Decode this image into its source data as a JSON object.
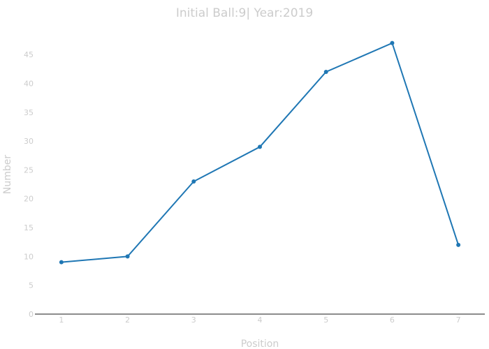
{
  "chart_data": {
    "type": "line",
    "title": "Initial Ball:9| Year:2019",
    "xlabel": "Position",
    "ylabel": "Number",
    "x": [
      1,
      2,
      3,
      4,
      5,
      6,
      7
    ],
    "y": [
      9,
      10,
      23,
      29,
      42,
      47,
      12
    ],
    "xticks": [
      "1",
      "2",
      "3",
      "4",
      "5",
      "6",
      "7"
    ],
    "yticks": [
      "0",
      "5",
      "10",
      "15",
      "20",
      "25",
      "30",
      "35",
      "40",
      "45"
    ],
    "xlim": [
      0.6,
      7.4
    ],
    "ylim": [
      0,
      49.5
    ],
    "grid": false,
    "colors": {
      "line": "#1f77b4",
      "axis": "#666666",
      "text": "#cccccc"
    }
  }
}
